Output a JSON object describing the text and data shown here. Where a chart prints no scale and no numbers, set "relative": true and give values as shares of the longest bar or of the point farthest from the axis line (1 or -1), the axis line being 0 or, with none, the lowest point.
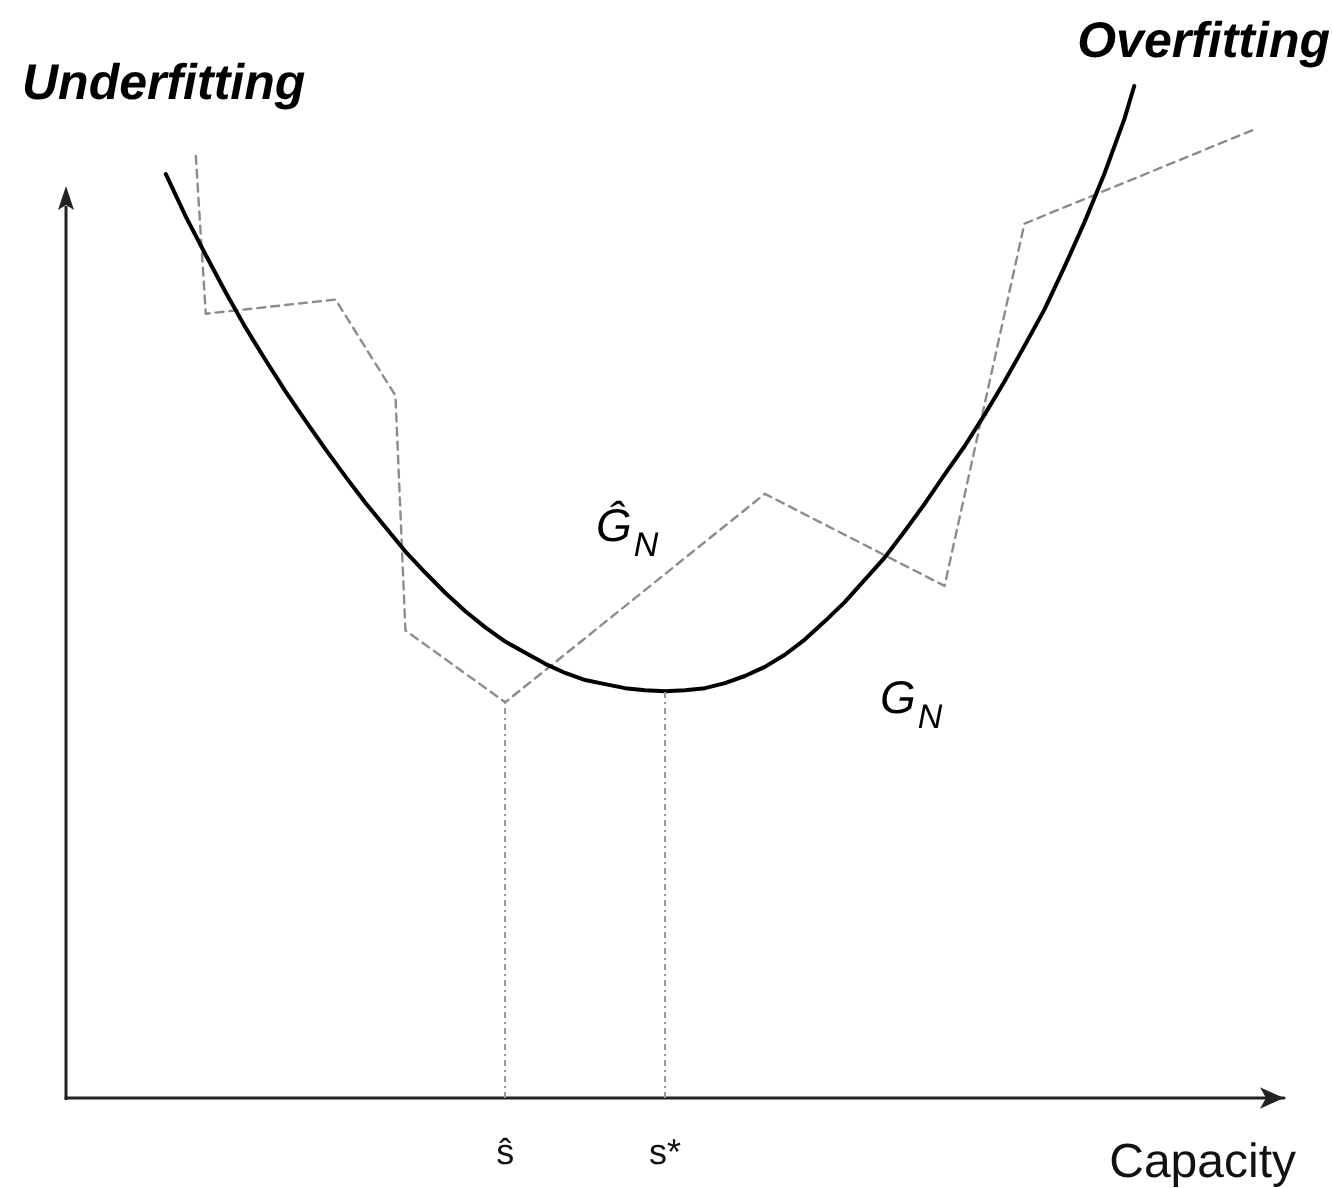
{
  "chart_data": {
    "type": "line",
    "relative": true,
    "xlabel": "Capacity",
    "marker": "none",
    "tick_labels": "x",
    "categories": [
      null,
      null,
      null,
      null,
      null,
      null,
      null,
      null,
      null,
      null,
      null,
      null,
      null,
      null,
      null,
      null,
      null,
      null,
      null,
      null,
      null,
      null,
      null,
      null,
      null,
      null,
      null,
      null,
      null,
      null,
      null,
      null,
      null,
      null,
      null,
      null,
      null,
      null,
      null,
      null,
      null,
      null,
      null,
      null,
      "ŝ",
      null,
      null,
      null,
      null,
      null,
      null,
      null,
      null,
      null,
      null,
      null,
      null,
      null,
      null,
      null,
      "s*",
      null,
      null,
      null,
      null,
      null,
      null,
      null,
      null,
      null,
      null,
      null,
      null,
      null,
      null,
      null,
      null,
      null,
      null,
      null,
      null,
      null,
      null,
      null,
      null,
      null,
      null,
      null,
      null,
      null,
      null,
      null,
      null,
      null,
      null,
      null,
      null,
      null,
      null,
      null,
      null,
      null,
      null,
      null,
      null,
      null,
      null,
      null,
      null,
      null,
      null,
      null,
      null,
      null,
      null,
      null,
      null,
      null,
      null,
      null,
      null,
      null,
      null
    ],
    "series": [
      {
        "name": "G$_{N}$",
        "color": "#000000",
        "line_style": "solid",
        "values": [
          null,
          null,
          null,
          null,
          null,
          null,
          null,
          null,
          null,
          null,
          0.913,
          null,
          0.871,
          null,
          0.833,
          null,
          0.796,
          null,
          0.761,
          null,
          0.729,
          null,
          0.698,
          null,
          0.669,
          null,
          0.641,
          null,
          0.614,
          null,
          0.588,
          null,
          0.564,
          null,
          0.54,
          null,
          0.519,
          null,
          0.499,
          null,
          0.481,
          null,
          0.465,
          null,
          0.451,
          null,
          0.44,
          null,
          0.429,
          null,
          0.42,
          null,
          0.413,
          null,
          0.409,
          null,
          0.405,
          null,
          0.403,
          null,
          0.402,
          null,
          0.403,
          null,
          0.405,
          null,
          0.41,
          null,
          0.417,
          null,
          0.426,
          null,
          0.438,
          null,
          0.453,
          null,
          0.471,
          null,
          0.49,
          null,
          0.512,
          null,
          0.534,
          null,
          0.56,
          null,
          0.587,
          null,
          0.616,
          null,
          0.644,
          null,
          0.675,
          null,
          0.708,
          null,
          0.743,
          null,
          0.779,
          null,
          0.821,
          null,
          0.865,
          null,
          0.913,
          null,
          0.967,
          1,
          null,
          null,
          null,
          null,
          null,
          null,
          null,
          null,
          null,
          null,
          null,
          null,
          null,
          null,
          null
        ]
      },
      {
        "name": "Ĝ$_{N}$",
        "color": "#8c8c8c",
        "line_style": "dashed",
        "values": [
          null,
          null,
          null,
          null,
          null,
          null,
          null,
          null,
          null,
          null,
          null,
          null,
          null,
          0.931,
          0.775,
          null,
          null,
          null,
          null,
          null,
          null,
          null,
          null,
          null,
          null,
          null,
          null,
          0.789,
          null,
          null,
          null,
          null,
          null,
          0.694,
          0.462,
          null,
          null,
          null,
          null,
          null,
          null,
          null,
          null,
          null,
          0.391,
          null,
          null,
          null,
          null,
          null,
          null,
          null,
          null,
          null,
          null,
          null,
          null,
          null,
          null,
          null,
          null,
          null,
          null,
          null,
          null,
          null,
          null,
          null,
          null,
          null,
          0.597,
          null,
          null,
          null,
          null,
          null,
          null,
          null,
          null,
          null,
          null,
          null,
          null,
          null,
          null,
          null,
          null,
          null,
          0.506,
          null,
          null,
          null,
          null,
          null,
          null,
          null,
          0.864,
          null,
          null,
          null,
          null,
          null,
          null,
          null,
          null,
          null,
          null,
          null,
          null,
          null,
          null,
          null,
          null,
          null,
          null,
          null,
          null,
          null,
          null,
          0.957,
          null,
          null,
          null
        ]
      }
    ],
    "ref_lines": [
      {
        "axis": "x",
        "value": "ŝ",
        "color": "#999999",
        "line_style": "dotted"
      },
      {
        "axis": "x",
        "value": "s*",
        "color": "#999999",
        "line_style": "dotted"
      }
    ],
    "annotations": [
      "Underfitting",
      "Overfitting"
    ]
  }
}
